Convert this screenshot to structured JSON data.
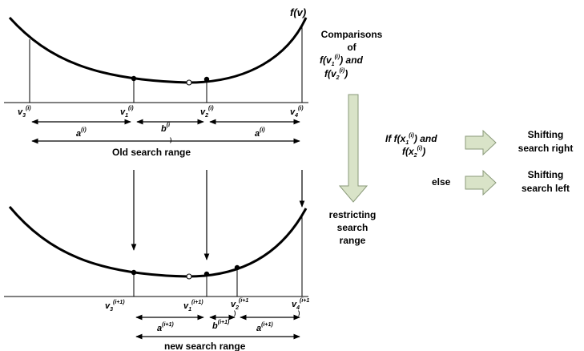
{
  "top": {
    "curve_label": "f(v)",
    "points": [
      {
        "base": "v",
        "sub": "3",
        "sup": "(i)"
      },
      {
        "base": "v",
        "sub": "1",
        "sup": "(i)"
      },
      {
        "base": "v",
        "sub": "2",
        "sup": "(i)"
      },
      {
        "base": "v",
        "sub": "4",
        "sup": "(i)"
      }
    ],
    "segments": {
      "a_left": {
        "base": "a",
        "sup": "(i)"
      },
      "b": {
        "base": "b",
        "sup": "(i",
        "tail": ")"
      },
      "a_right": {
        "base": "a",
        "sup": "(i)"
      }
    },
    "range_caption": "Old search range"
  },
  "bottom": {
    "points": [
      {
        "base": "v",
        "sub": "3",
        "sup": "(i+1)"
      },
      {
        "base": "v",
        "sub": "1",
        "sup": "(i+1)"
      },
      {
        "base": "v",
        "sub": "2",
        "sup": "(i+1",
        "tail": ")"
      },
      {
        "base": "v",
        "sub": "4",
        "sup": "(i+1",
        "tail": ")"
      }
    ],
    "segments": {
      "a_left": {
        "base": "a",
        "sup": "(i+1)"
      },
      "b": {
        "base": "b",
        "sup": "(i+1)"
      },
      "a_right": {
        "base": "a",
        "sup": "(i+1)"
      }
    },
    "range_caption": "new search range"
  },
  "comparisons": {
    "line1": "Comparisons",
    "line2": "of",
    "line3": "f(v",
    "line3_sub": "1",
    "line3_sup": "(i)",
    "line3_rest": ") and",
    "line4": "f(v",
    "line4_sub": "2",
    "line4_sup": "(i)",
    "line4_rest": ")"
  },
  "restricting": {
    "line1": "restricting",
    "line2": "search",
    "line3": "range"
  },
  "condition": {
    "if_prefix": "If f(x",
    "if_sub": "1",
    "if_sup": "(i)",
    "if_rest": ") and",
    "line2": "f(x",
    "line2_sub": "2",
    "line2_sup": "(i)",
    "line2_rest": ")",
    "else_label": "else"
  },
  "outcomes": {
    "right_line1": "Shifting",
    "right_line2": "search right",
    "left_line1": "Shifting",
    "left_line2": "search left"
  },
  "colors": {
    "ink": "#000000",
    "arrow_fill": "#d9e3c8",
    "arrow_stroke": "#8a9a7a"
  }
}
